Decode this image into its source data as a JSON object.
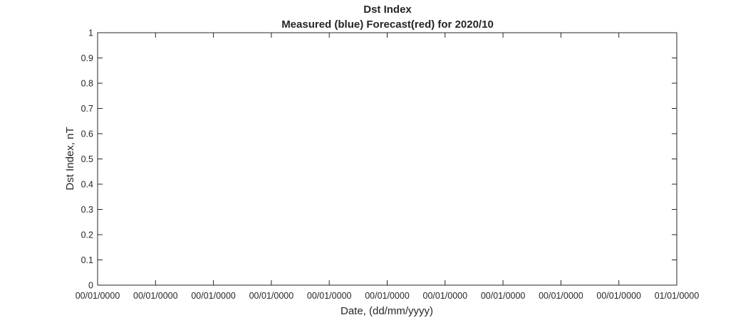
{
  "chart_data": {
    "type": "line",
    "title": "Dst Index",
    "subtitle": "Measured (blue) Forecast(red) for 2020/10",
    "xlabel": "Date, (dd/mm/yyyy)",
    "ylabel": "Dst Index, nT",
    "ylim": [
      0,
      1
    ],
    "yticks": [
      "0",
      "0.1",
      "0.2",
      "0.3",
      "0.4",
      "0.5",
      "0.6",
      "0.7",
      "0.8",
      "0.9",
      "1"
    ],
    "xticks": [
      "00/01/0000",
      "00/01/0000",
      "00/01/0000",
      "00/01/0000",
      "00/01/0000",
      "00/01/0000",
      "00/01/0000",
      "00/01/0000",
      "00/01/0000",
      "00/01/0000",
      "01/01/0000"
    ],
    "grid": false,
    "series": []
  }
}
